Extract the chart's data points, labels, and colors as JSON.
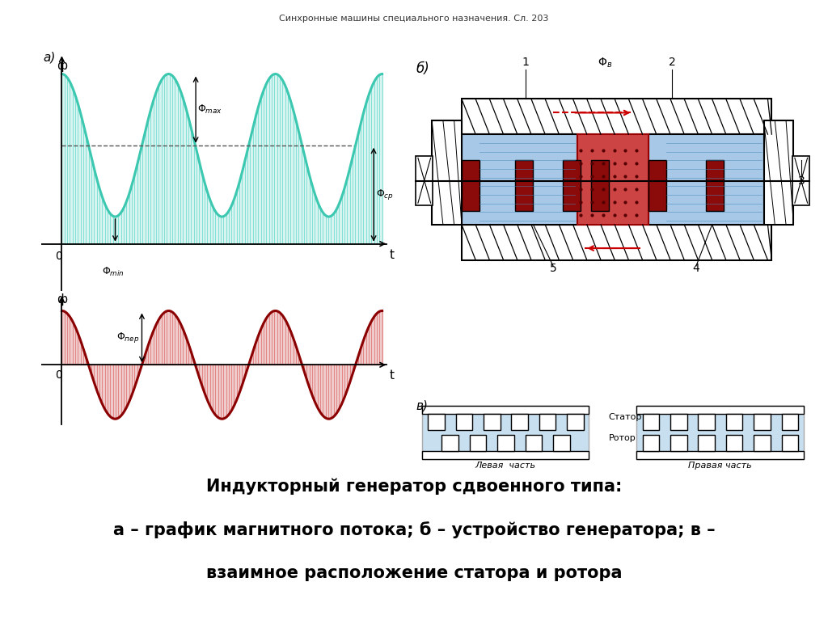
{
  "title_top": "Синхронные машины специального назначения. Сл. 203",
  "title_bottom_line1": "Индукторный генератор сдвоенного типа:",
  "title_bottom_line2": "а – график магнитного потока; б – устройство генератора; в –",
  "title_bottom_line3": "взаимное расположение статора и ротора",
  "bg_color": "#ffffff",
  "wave_top_color": "#3cc8b0",
  "wave_top_fill": "#7dddd0",
  "wave_bottom_color": "#8b0000",
  "wave_bottom_fill": "#cc5555",
  "diagram_bg": "#c8dff0"
}
